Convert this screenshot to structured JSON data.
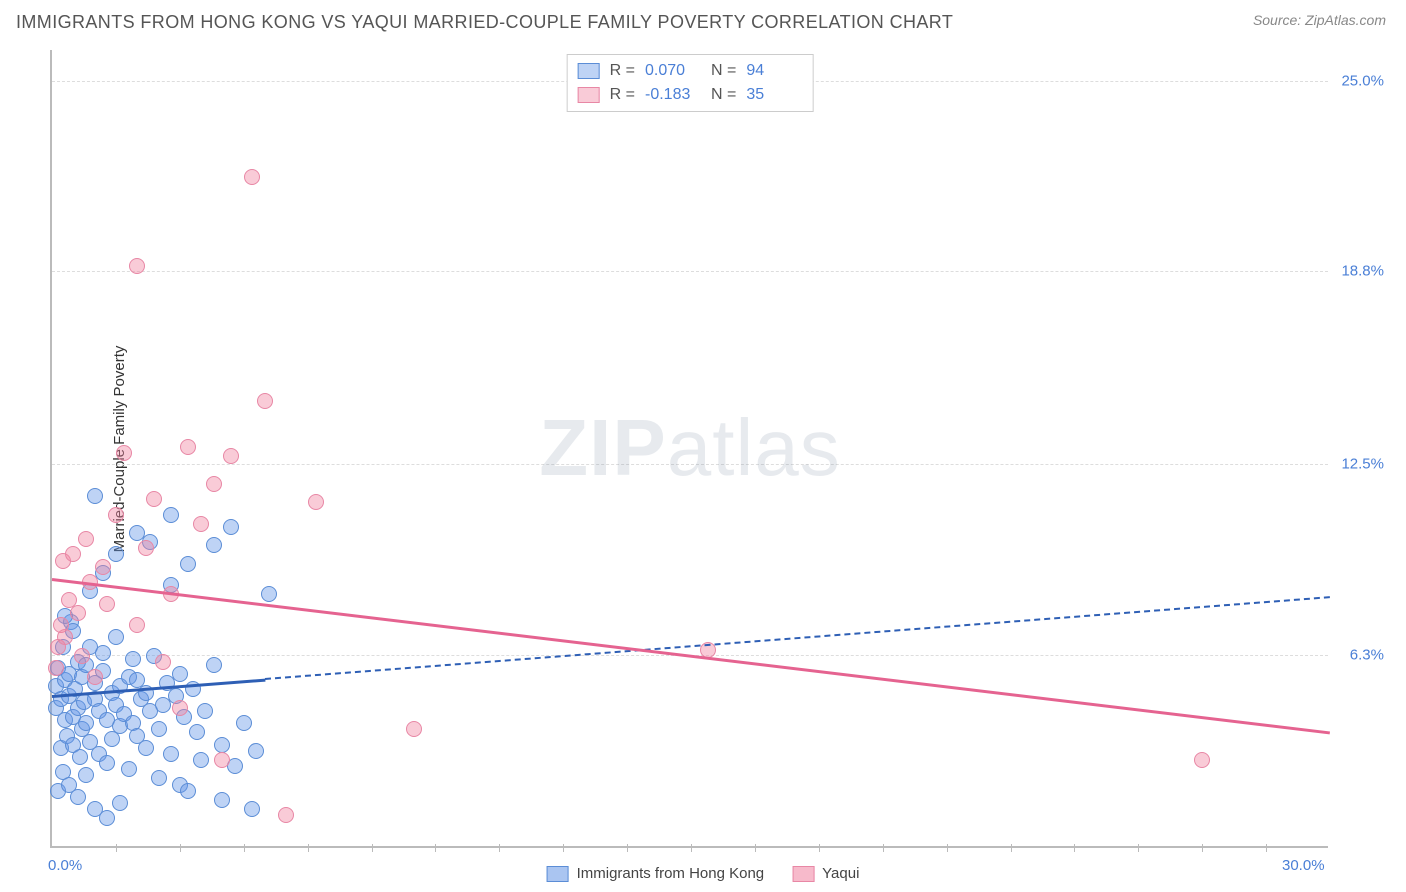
{
  "header": {
    "title": "IMMIGRANTS FROM HONG KONG VS YAQUI MARRIED-COUPLE FAMILY POVERTY CORRELATION CHART",
    "source": "Source: ZipAtlas.com"
  },
  "ylabel": "Married-Couple Family Poverty",
  "watermark": {
    "bold": "ZIP",
    "light": "atlas"
  },
  "chart": {
    "type": "scatter",
    "xlim": [
      0,
      30
    ],
    "ylim": [
      0,
      26
    ],
    "background": "#ffffff",
    "grid_color": "#dddddd",
    "axis_color": "#bbbbbb",
    "xticks": [
      {
        "value": 0.0,
        "label": "0.0%"
      },
      {
        "value": 30.0,
        "label": "30.0%"
      }
    ],
    "xminor": [
      1.5,
      3,
      4.5,
      6,
      7.5,
      9,
      10.5,
      12,
      13.5,
      15,
      16.5,
      18,
      19.5,
      21,
      22.5,
      24,
      25.5,
      27,
      28.5
    ],
    "yticks": [
      {
        "value": 6.3,
        "label": "6.3%"
      },
      {
        "value": 12.5,
        "label": "12.5%"
      },
      {
        "value": 18.8,
        "label": "18.8%"
      },
      {
        "value": 25.0,
        "label": "25.0%"
      }
    ],
    "tick_label_color": "#4a7fd6",
    "series": [
      {
        "name": "Immigrants from Hong Kong",
        "color_fill": "rgba(100,150,230,0.42)",
        "color_stroke": "#5b8dd6",
        "marker_size": 16,
        "r_label": "0.070",
        "n_label": "94",
        "trend": {
          "x1": 0,
          "y1": 5.0,
          "x2": 30,
          "y2": 8.2,
          "color": "#2e5fb5",
          "dash_after_x": 5.0
        },
        "points": [
          [
            0.1,
            4.5
          ],
          [
            0.1,
            5.2
          ],
          [
            0.15,
            5.8
          ],
          [
            0.2,
            3.2
          ],
          [
            0.2,
            4.8
          ],
          [
            0.25,
            6.5
          ],
          [
            0.3,
            4.1
          ],
          [
            0.3,
            5.4
          ],
          [
            0.35,
            3.6
          ],
          [
            0.4,
            4.9
          ],
          [
            0.4,
            5.6
          ],
          [
            0.45,
            7.3
          ],
          [
            0.5,
            3.3
          ],
          [
            0.5,
            4.2
          ],
          [
            0.55,
            5.1
          ],
          [
            0.6,
            4.5
          ],
          [
            0.6,
            6.0
          ],
          [
            0.65,
            2.9
          ],
          [
            0.7,
            5.5
          ],
          [
            0.7,
            3.8
          ],
          [
            0.75,
            4.7
          ],
          [
            0.8,
            5.9
          ],
          [
            0.8,
            4.0
          ],
          [
            0.9,
            6.5
          ],
          [
            0.9,
            3.4
          ],
          [
            1.0,
            4.8
          ],
          [
            1.0,
            5.3
          ],
          [
            1.1,
            3.0
          ],
          [
            1.1,
            4.4
          ],
          [
            1.2,
            5.7
          ],
          [
            1.2,
            6.3
          ],
          [
            1.3,
            4.1
          ],
          [
            1.3,
            2.7
          ],
          [
            1.4,
            5.0
          ],
          [
            1.4,
            3.5
          ],
          [
            1.5,
            4.6
          ],
          [
            1.5,
            6.8
          ],
          [
            1.6,
            5.2
          ],
          [
            1.6,
            3.9
          ],
          [
            1.7,
            4.3
          ],
          [
            1.8,
            5.5
          ],
          [
            1.8,
            2.5
          ],
          [
            1.9,
            4.0
          ],
          [
            1.9,
            6.1
          ],
          [
            2.0,
            3.6
          ],
          [
            2.0,
            5.4
          ],
          [
            2.1,
            4.8
          ],
          [
            2.2,
            3.2
          ],
          [
            2.2,
            5.0
          ],
          [
            2.3,
            4.4
          ],
          [
            2.4,
            6.2
          ],
          [
            2.5,
            3.8
          ],
          [
            2.5,
            2.2
          ],
          [
            2.6,
            4.6
          ],
          [
            2.7,
            5.3
          ],
          [
            2.8,
            3.0
          ],
          [
            2.8,
            8.5
          ],
          [
            2.9,
            4.9
          ],
          [
            3.0,
            5.6
          ],
          [
            3.0,
            2.0
          ],
          [
            3.1,
            4.2
          ],
          [
            3.2,
            1.8
          ],
          [
            3.3,
            5.1
          ],
          [
            3.4,
            3.7
          ],
          [
            3.5,
            2.8
          ],
          [
            3.6,
            4.4
          ],
          [
            3.8,
            9.8
          ],
          [
            3.8,
            5.9
          ],
          [
            4.0,
            1.5
          ],
          [
            4.0,
            3.3
          ],
          [
            4.2,
            10.4
          ],
          [
            4.3,
            2.6
          ],
          [
            4.5,
            4.0
          ],
          [
            4.7,
            1.2
          ],
          [
            4.8,
            3.1
          ],
          [
            5.1,
            8.2
          ],
          [
            2.0,
            10.2
          ],
          [
            1.5,
            9.5
          ],
          [
            1.2,
            8.9
          ],
          [
            0.9,
            8.3
          ],
          [
            2.3,
            9.9
          ],
          [
            2.8,
            10.8
          ],
          [
            3.2,
            9.2
          ],
          [
            1.0,
            11.4
          ],
          [
            0.3,
            7.5
          ],
          [
            0.5,
            7.0
          ],
          [
            0.15,
            1.8
          ],
          [
            0.25,
            2.4
          ],
          [
            0.4,
            2.0
          ],
          [
            0.6,
            1.6
          ],
          [
            0.8,
            2.3
          ],
          [
            1.0,
            1.2
          ],
          [
            1.3,
            0.9
          ],
          [
            1.6,
            1.4
          ]
        ]
      },
      {
        "name": "Yaqui",
        "color_fill": "rgba(240,130,160,0.42)",
        "color_stroke": "#e887a5",
        "marker_size": 16,
        "r_label": "-0.183",
        "n_label": "35",
        "trend": {
          "x1": 0,
          "y1": 8.8,
          "x2": 30,
          "y2": 3.8,
          "color": "#e56390",
          "dash_after_x": 30
        },
        "points": [
          [
            0.1,
            5.8
          ],
          [
            0.15,
            6.5
          ],
          [
            0.2,
            7.2
          ],
          [
            0.25,
            9.3
          ],
          [
            0.3,
            6.8
          ],
          [
            0.4,
            8.0
          ],
          [
            0.5,
            9.5
          ],
          [
            0.6,
            7.6
          ],
          [
            0.7,
            6.2
          ],
          [
            0.8,
            10.0
          ],
          [
            0.9,
            8.6
          ],
          [
            1.0,
            5.5
          ],
          [
            1.2,
            9.1
          ],
          [
            1.5,
            10.8
          ],
          [
            1.7,
            12.8
          ],
          [
            2.0,
            7.2
          ],
          [
            2.2,
            9.7
          ],
          [
            2.4,
            11.3
          ],
          [
            2.8,
            8.2
          ],
          [
            3.2,
            13.0
          ],
          [
            3.5,
            10.5
          ],
          [
            4.2,
            12.7
          ],
          [
            5.0,
            14.5
          ],
          [
            5.5,
            1.0
          ],
          [
            4.7,
            21.8
          ],
          [
            2.0,
            18.9
          ],
          [
            3.8,
            11.8
          ],
          [
            6.2,
            11.2
          ],
          [
            8.5,
            3.8
          ],
          [
            15.4,
            6.4
          ],
          [
            27.0,
            2.8
          ],
          [
            1.3,
            7.9
          ],
          [
            2.6,
            6.0
          ],
          [
            3.0,
            4.5
          ],
          [
            4.0,
            2.8
          ]
        ]
      }
    ],
    "legend_bottom": [
      {
        "label": "Immigrants from Hong Kong",
        "fill": "rgba(100,150,230,0.55)",
        "stroke": "#5b8dd6"
      },
      {
        "label": "Yaqui",
        "fill": "rgba(240,130,160,0.55)",
        "stroke": "#e887a5"
      }
    ]
  }
}
